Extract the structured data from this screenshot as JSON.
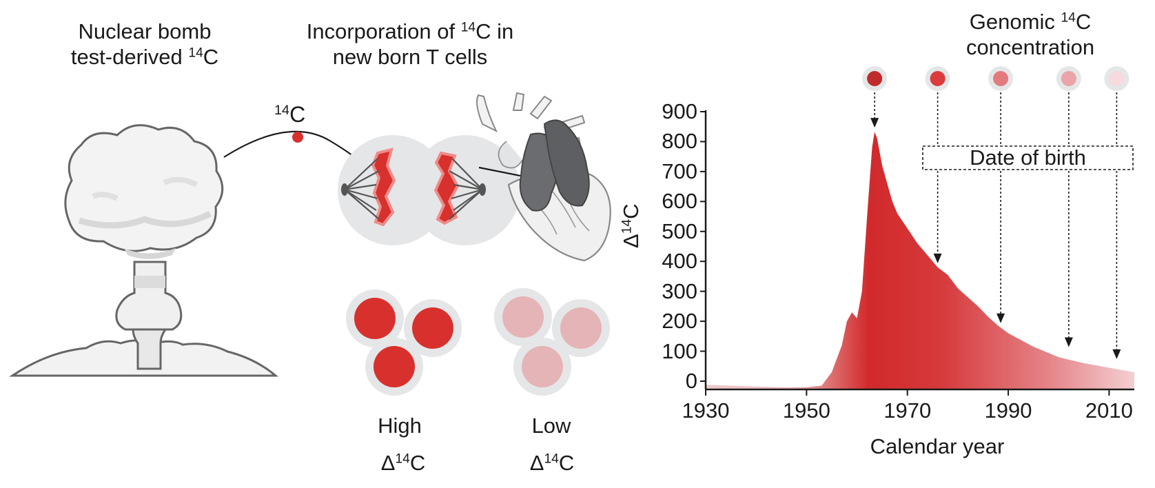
{
  "left_panel": {
    "bomb_label": [
      "Nuclear bomb",
      "test-derived "
    ],
    "incorporation_label": [
      "Incorporation of ",
      "C in",
      "new born T cells"
    ],
    "c14_label": "C",
    "isotope_superscript": "14",
    "high_label": "High",
    "low_label": "Low",
    "delta_label": "Δ",
    "delta_c": "C"
  },
  "colors": {
    "red": "#d8302c",
    "light_red": "#e5b4b6",
    "grey_cell": "#e5e6e8",
    "dark_organ": "#6b6c70"
  },
  "chart": {
    "title": [
      "Genomic ",
      "C",
      "concentration"
    ],
    "annotation": "Date of birth",
    "ylabel_delta": "Δ",
    "ylabel_c": "C",
    "xlabel": "Calendar year",
    "ytick_labels": [
      "900",
      "800",
      "700",
      "600",
      "500",
      "400",
      "300",
      "200",
      "100",
      "0"
    ],
    "xtick_labels": [
      "1930",
      "1950",
      "1970",
      "1990",
      "2010"
    ]
  },
  "chart_data": {
    "type": "area",
    "xlabel": "Calendar year",
    "ylabel": "Δ14C",
    "xlim": [
      1930,
      2015
    ],
    "ylim": [
      -25,
      900
    ],
    "x": [
      1930,
      1935,
      1940,
      1945,
      1950,
      1953,
      1955,
      1957,
      1958,
      1959,
      1960,
      1961,
      1962,
      1963,
      1963.5,
      1964,
      1965,
      1966,
      1967,
      1968,
      1970,
      1972,
      1974,
      1976,
      1978,
      1980,
      1982,
      1984,
      1986,
      1988,
      1990,
      1995,
      2000,
      2005,
      2010,
      2015
    ],
    "y": [
      -12,
      -15,
      -18,
      -20,
      -20,
      -15,
      30,
      120,
      200,
      230,
      210,
      300,
      550,
      780,
      833,
      810,
      720,
      660,
      600,
      560,
      510,
      460,
      420,
      380,
      355,
      310,
      280,
      250,
      215,
      185,
      160,
      115,
      80,
      60,
      45,
      30
    ],
    "birth_markers": [
      {
        "year": 1963.5,
        "y": 833,
        "color": "#c12a2b"
      },
      {
        "year": 1976,
        "y": 380,
        "color": "#dc3b3b"
      },
      {
        "year": 1988.5,
        "y": 180,
        "color": "#e27a7e"
      },
      {
        "year": 2002,
        "y": 100,
        "color": "#eba4a9"
      },
      {
        "year": 2011.5,
        "y": 60,
        "color": "#f6dadd"
      }
    ]
  }
}
